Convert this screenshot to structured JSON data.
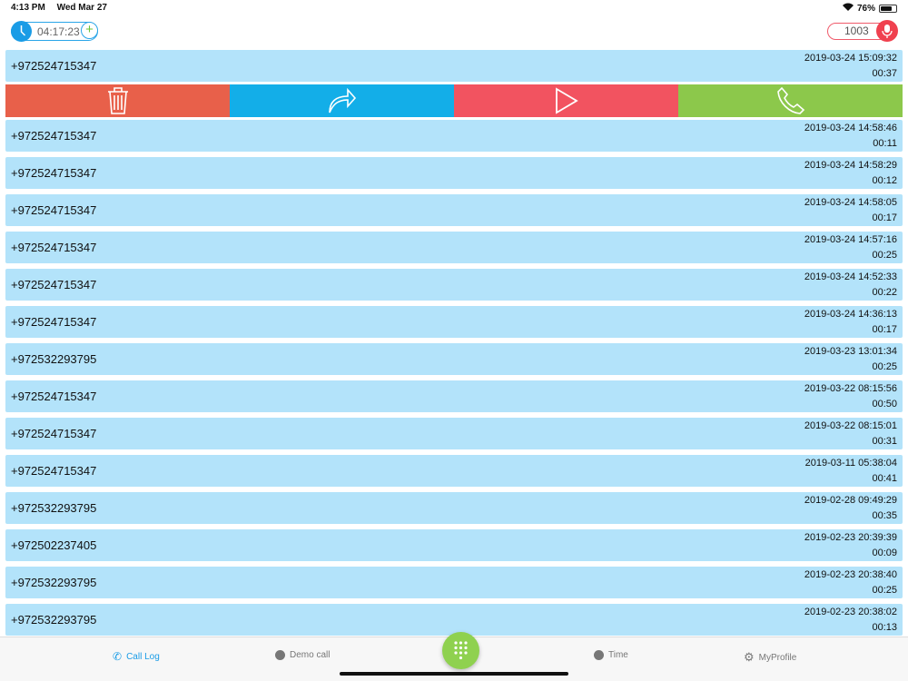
{
  "status_bar": {
    "time": "4:13 PM",
    "date": "Wed Mar 27",
    "battery": "76%",
    "battery_level": 0.76
  },
  "header": {
    "timer": "04:17:23",
    "extension": "1003"
  },
  "colors": {
    "delete": "#e8604a",
    "forward": "#13aee8",
    "play": "#f25360",
    "call": "#8cc84b",
    "row": "#b3e3fa"
  },
  "actions": [
    {
      "name": "delete",
      "icon": "trash-icon"
    },
    {
      "name": "forward",
      "icon": "forward-icon"
    },
    {
      "name": "play",
      "icon": "play-icon"
    },
    {
      "name": "call",
      "icon": "phone-icon"
    }
  ],
  "calls": [
    {
      "number": "+972524715347",
      "datetime": "2019-03-24 15:09:32",
      "duration": "00:37"
    },
    {
      "number": "+972524715347",
      "datetime": "2019-03-24 14:58:46",
      "duration": "00:11"
    },
    {
      "number": "+972524715347",
      "datetime": "2019-03-24 14:58:29",
      "duration": "00:12"
    },
    {
      "number": "+972524715347",
      "datetime": "2019-03-24 14:58:05",
      "duration": "00:17"
    },
    {
      "number": "+972524715347",
      "datetime": "2019-03-24 14:57:16",
      "duration": "00:25"
    },
    {
      "number": "+972524715347",
      "datetime": "2019-03-24 14:52:33",
      "duration": "00:22"
    },
    {
      "number": "+972524715347",
      "datetime": "2019-03-24 14:36:13",
      "duration": "00:17"
    },
    {
      "number": "+972532293795",
      "datetime": "2019-03-23 13:01:34",
      "duration": "00:25"
    },
    {
      "number": "+972524715347",
      "datetime": "2019-03-22 08:15:56",
      "duration": "00:50"
    },
    {
      "number": "+972524715347",
      "datetime": "2019-03-22 08:15:01",
      "duration": "00:31"
    },
    {
      "number": "+972524715347",
      "datetime": "2019-03-11 05:38:04",
      "duration": "00:41"
    },
    {
      "number": "+972532293795",
      "datetime": "2019-02-28 09:49:29",
      "duration": "00:35"
    },
    {
      "number": "+972502237405",
      "datetime": "2019-02-23 20:39:39",
      "duration": "00:09"
    },
    {
      "number": "+972532293795",
      "datetime": "2019-02-23 20:38:40",
      "duration": "00:25"
    },
    {
      "number": "+972532293795",
      "datetime": "2019-02-23 20:38:02",
      "duration": "00:13"
    }
  ],
  "tabs": [
    {
      "label": "Call Log",
      "active": true
    },
    {
      "label": "Demo call"
    },
    {
      "label": "Time"
    },
    {
      "label": "MyProfile"
    }
  ]
}
